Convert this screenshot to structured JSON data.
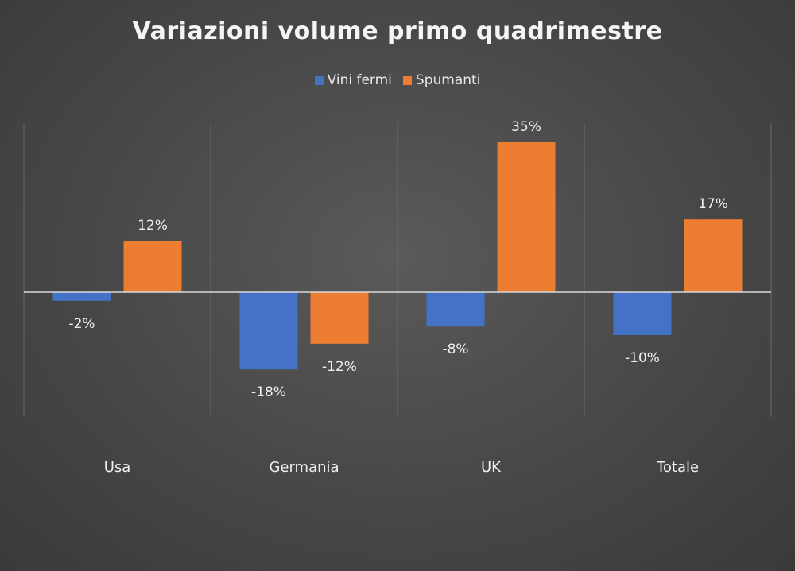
{
  "chart_data": {
    "type": "bar",
    "title": "Variazioni volume primo quadrimestre",
    "categories": [
      "Usa",
      "Germania",
      "UK",
      "Totale"
    ],
    "series": [
      {
        "name": "Vini fermi",
        "color": "#4472C4",
        "values": [
          -2,
          -18,
          -8,
          -10
        ],
        "labels": [
          "-2%",
          "-18%",
          "-8%",
          "-10%"
        ]
      },
      {
        "name": "Spumanti",
        "color": "#ED7D31",
        "values": [
          12,
          -12,
          35,
          17
        ],
        "labels": [
          "12%",
          "-12%",
          "35%",
          "17%"
        ]
      }
    ],
    "ylim": [
      -28,
      35
    ],
    "xlabel": "",
    "ylabel": "",
    "legend_position": "top",
    "grid": "vertical category separators",
    "background_color": "#4a4a4a"
  }
}
